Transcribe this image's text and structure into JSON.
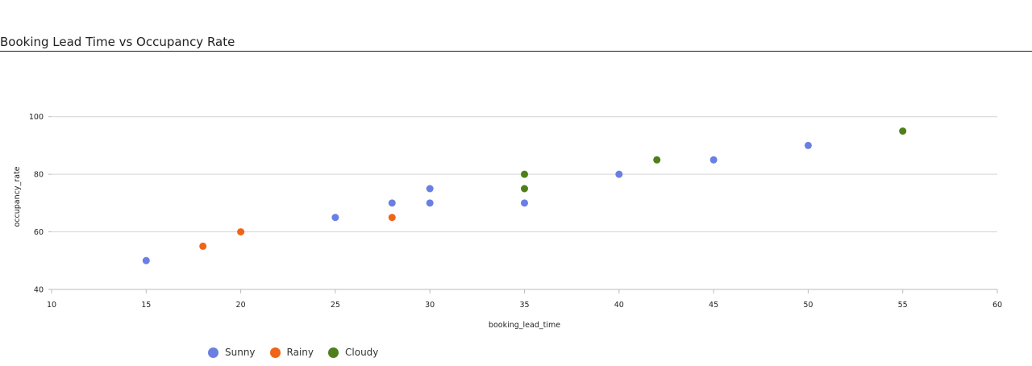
{
  "chart_data": {
    "type": "scatter",
    "title": "Booking Lead Time vs Occupancy Rate",
    "xlabel": "booking_lead_time",
    "ylabel": "occupancy_rate",
    "xlim": [
      10,
      60
    ],
    "ylim": [
      40,
      110
    ],
    "xticks": [
      10,
      15,
      20,
      25,
      30,
      35,
      40,
      45,
      50,
      55,
      60
    ],
    "yticks": [
      40,
      60,
      80,
      100
    ],
    "grid": "horizontal",
    "legend_position": "bottom-left",
    "series": [
      {
        "name": "Sunny",
        "color": "#6b7fe3",
        "points": [
          [
            15,
            50
          ],
          [
            25,
            65
          ],
          [
            28,
            70
          ],
          [
            30,
            75
          ],
          [
            30,
            70
          ],
          [
            35,
            70
          ],
          [
            40,
            80
          ],
          [
            45,
            85
          ],
          [
            50,
            90
          ]
        ]
      },
      {
        "name": "Rainy",
        "color": "#f06418",
        "points": [
          [
            18,
            55
          ],
          [
            20,
            60
          ],
          [
            28,
            65
          ]
        ]
      },
      {
        "name": "Cloudy",
        "color": "#4f7f1a",
        "points": [
          [
            35,
            80
          ],
          [
            35,
            75
          ],
          [
            42,
            85
          ],
          [
            55,
            95
          ]
        ]
      }
    ]
  }
}
